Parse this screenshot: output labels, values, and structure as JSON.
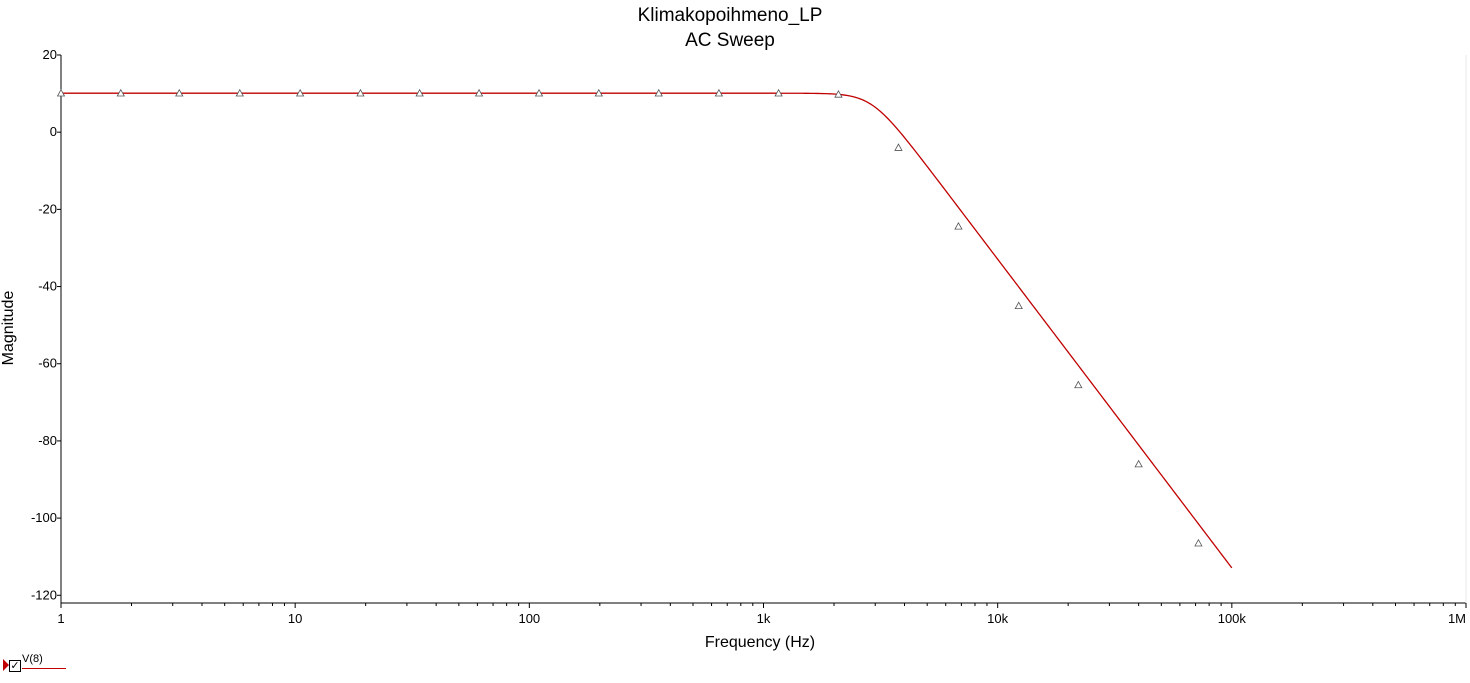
{
  "colors": {
    "series": "#c00000",
    "axis": "#000000",
    "background": "#ffffff"
  },
  "legend": {
    "label": "V(8)",
    "checked": true,
    "check_glyph": "✓"
  },
  "chart_data": {
    "type": "line",
    "title": "Klimakopoihmeno_LP",
    "subtitle": "AC Sweep",
    "xlabel": "Frequency (Hz)",
    "ylabel": "Magnitude",
    "xscale": "log",
    "xlim": [
      1,
      1000000
    ],
    "ylim": [
      -122,
      20
    ],
    "x_ticks": [
      {
        "value": 1,
        "label": "1"
      },
      {
        "value": 10,
        "label": "10"
      },
      {
        "value": 100,
        "label": "100"
      },
      {
        "value": 1000,
        "label": "1k"
      },
      {
        "value": 10000,
        "label": "10k"
      },
      {
        "value": 100000,
        "label": "100k"
      },
      {
        "value": 1000000,
        "label": "1M"
      }
    ],
    "y_ticks": [
      20,
      0,
      -20,
      -40,
      -60,
      -80,
      -100,
      -120
    ],
    "grid": false,
    "series": [
      {
        "name": "V(8)",
        "color": "#c00000",
        "marker": "triangle",
        "x": [
          1,
          1.8,
          3.2,
          5.8,
          10.5,
          19,
          34,
          61,
          110,
          198,
          357,
          645,
          1160,
          2090,
          3770,
          6800,
          12300,
          22100,
          40000,
          72000
        ],
        "y": [
          10.1,
          10.1,
          10.1,
          10.1,
          10.1,
          10.1,
          10.1,
          10.1,
          10.1,
          10.1,
          10.1,
          10.1,
          10.1,
          9.8,
          -4,
          -24.4,
          -45,
          -65.5,
          -86,
          -106.5
        ]
      }
    ],
    "curve": {
      "dc_gain": 10.1,
      "cutoff_hz": 2900,
      "order": 4,
      "x_end": 100000
    }
  }
}
